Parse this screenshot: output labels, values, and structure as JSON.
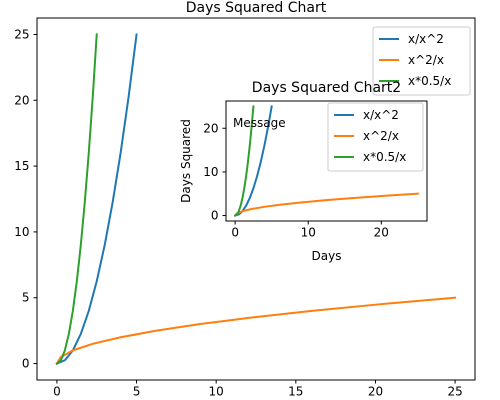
{
  "chart_data": [
    {
      "type": "line",
      "title": "Days Squared Chart",
      "xlabel": "",
      "ylabel": "",
      "xlim": [
        -1.25,
        26.25
      ],
      "ylim": [
        -1.25,
        26.25
      ],
      "xticks": [
        0,
        5,
        10,
        15,
        20,
        25
      ],
      "yticks": [
        0,
        5,
        10,
        15,
        20,
        25
      ],
      "grid": false,
      "legend_position": "top-right",
      "series": [
        {
          "name": "x/x^2",
          "color": "#1f77b4",
          "x": [
            0,
            0.5,
            1,
            1.5,
            2,
            2.5,
            3,
            3.5,
            4,
            4.5,
            5
          ],
          "y": [
            0,
            0.25,
            1,
            2.25,
            4,
            6.25,
            9,
            12.25,
            16,
            20.25,
            25
          ]
        },
        {
          "name": "x^2/x",
          "color": "#ff7f0e",
          "x": [
            0,
            0.25,
            1,
            2.25,
            4,
            6.25,
            9,
            12.25,
            16,
            20.25,
            25
          ],
          "y": [
            0,
            0.5,
            1,
            1.5,
            2,
            2.5,
            3,
            3.5,
            4,
            4.5,
            5
          ]
        },
        {
          "name": "x*0.5/x",
          "color": "#2ca02c",
          "x": [
            0,
            0.25,
            0.5,
            0.75,
            1,
            1.25,
            1.5,
            1.75,
            2,
            2.25,
            2.5
          ],
          "y": [
            0,
            0.25,
            1,
            2.25,
            4,
            6.25,
            9,
            12.25,
            16,
            20.25,
            25
          ]
        }
      ]
    },
    {
      "type": "line",
      "title": "Days Squared Chart2",
      "xlabel": "Days",
      "ylabel": "Days Squared",
      "annotation": "Message",
      "xlim": [
        -1.25,
        26.25
      ],
      "ylim": [
        -1.25,
        26.25
      ],
      "xticks": [
        0,
        10,
        20
      ],
      "yticks": [
        0,
        10,
        20
      ],
      "grid": false,
      "legend_position": "top-right",
      "series": [
        {
          "name": "x/x^2",
          "color": "#1f77b4",
          "x": [
            0,
            0.5,
            1,
            1.5,
            2,
            2.5,
            3,
            3.5,
            4,
            4.5,
            5
          ],
          "y": [
            0,
            0.25,
            1,
            2.25,
            4,
            6.25,
            9,
            12.25,
            16,
            20.25,
            25
          ]
        },
        {
          "name": "x^2/x",
          "color": "#ff7f0e",
          "x": [
            0,
            0.25,
            1,
            2.25,
            4,
            6.25,
            9,
            12.25,
            16,
            20.25,
            25
          ],
          "y": [
            0,
            0.5,
            1,
            1.5,
            2,
            2.5,
            3,
            3.5,
            4,
            4.5,
            5
          ]
        },
        {
          "name": "x*0.5/x",
          "color": "#2ca02c",
          "x": [
            0,
            0.25,
            0.5,
            0.75,
            1,
            1.25,
            1.5,
            1.75,
            2,
            2.25,
            2.5
          ],
          "y": [
            0,
            0.25,
            1,
            2.25,
            4,
            6.25,
            9,
            12.25,
            16,
            20.25,
            25
          ]
        }
      ]
    }
  ]
}
